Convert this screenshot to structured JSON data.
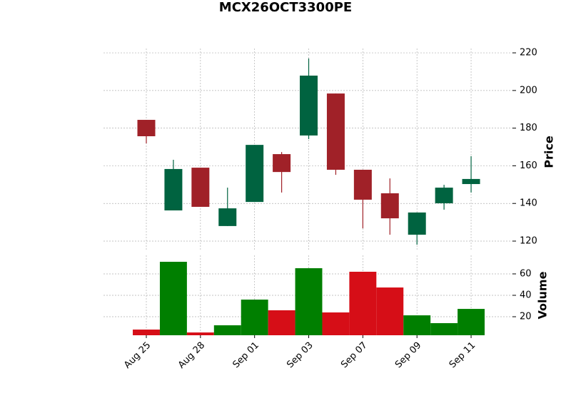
{
  "chart_data": {
    "type": "candlestick",
    "title": "MCX26OCT3300PE",
    "categories": [
      "Aug 25",
      null,
      "Aug 28",
      null,
      "Sep 01",
      null,
      "Sep 03",
      null,
      "Sep 07",
      null,
      "Sep 09",
      null,
      "Sep 11"
    ],
    "open": [
      184.4,
      136.3,
      159.0,
      128.0,
      140.8,
      166.2,
      176.1,
      198.4,
      157.9,
      145.4,
      123.4,
      140.1,
      150.3
    ],
    "high": [
      184.4,
      163.2,
      159.0,
      148.4,
      171.1,
      167.3,
      217.0,
      198.4,
      157.9,
      153.3,
      135.2,
      149.9,
      165.1
    ],
    "low": [
      171.9,
      136.3,
      138.2,
      128.0,
      140.8,
      145.8,
      174.2,
      155.2,
      126.8,
      123.4,
      118.1,
      136.7,
      145.8
    ],
    "close": [
      175.7,
      158.3,
      138.2,
      137.4,
      171.1,
      156.7,
      207.9,
      157.9,
      142.0,
      132.1,
      135.2,
      148.4,
      153.0
    ],
    "volume": [
      8.0,
      71.3,
      5.3,
      12.0,
      36.0,
      26.0,
      65.3,
      24.0,
      62.0,
      47.3,
      21.3,
      14.0,
      27.3
    ],
    "ylabel": "Price",
    "ylim": [
      114.7,
      222.3
    ],
    "yticks": [
      120,
      140,
      160,
      180,
      200,
      220
    ],
    "volume_label": "Volume",
    "volume_ylim": [
      2.7,
      77.3
    ],
    "volume_yticks": [
      20,
      40,
      60
    ],
    "up_color": "#006340",
    "down_color": "#a02128",
    "volume_up_color": "#007f00",
    "volume_down_color": "#d60e17",
    "grid": true
  }
}
